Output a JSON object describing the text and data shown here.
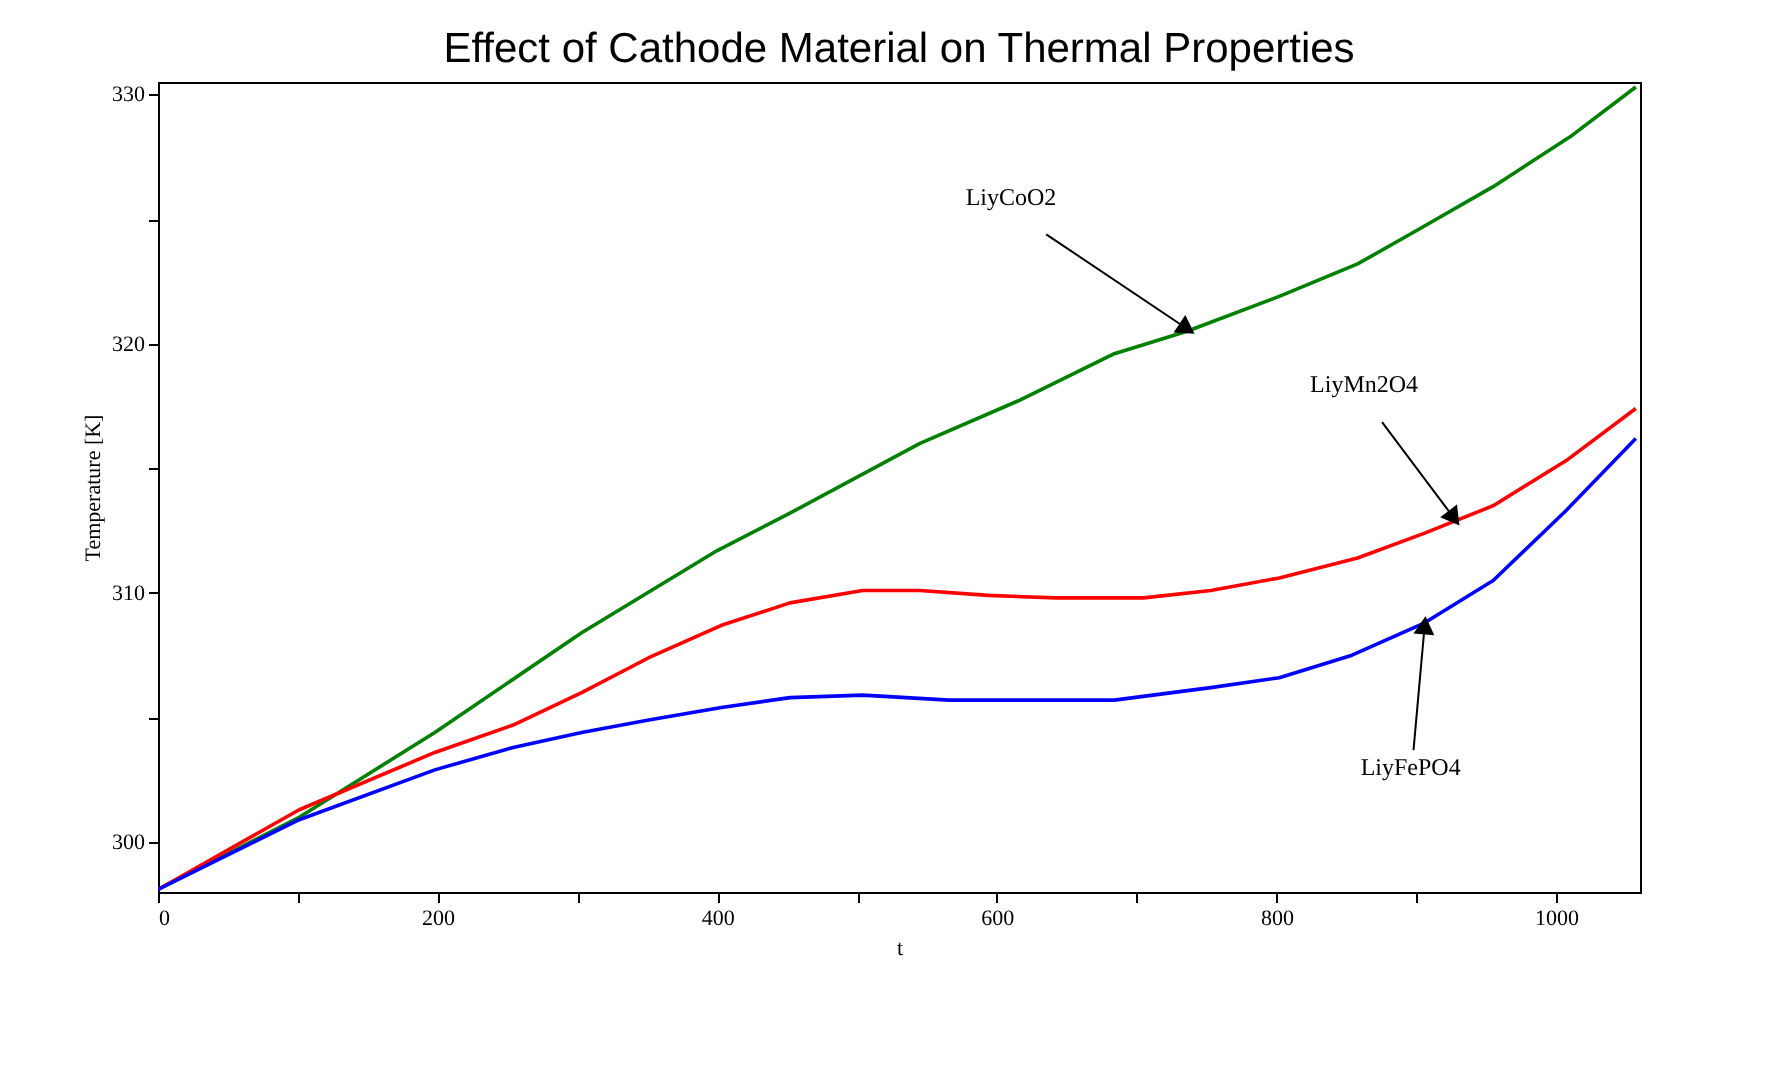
{
  "chart_data": {
    "type": "line",
    "title": "Effect of Cathode Material on Thermal Properties",
    "xlabel": "t",
    "ylabel": "Temperature [K]",
    "xlim": [
      0,
      1060
    ],
    "ylim": [
      298,
      330.5
    ],
    "xticks": [
      0,
      {
        "value": 100,
        "label": null
      },
      200,
      {
        "value": 300,
        "label": null
      },
      400,
      {
        "value": 500,
        "label": null
      },
      600,
      {
        "value": 700,
        "label": null
      },
      800,
      {
        "value": 900,
        "label": null
      },
      1000
    ],
    "yticks": [
      300,
      {
        "value": 305,
        "label": null
      },
      310,
      {
        "value": 315,
        "label": null
      },
      320,
      {
        "value": 325,
        "label": null
      },
      330
    ],
    "grid": false,
    "legend": false,
    "series": [
      {
        "color": "#008000",
        "x": [
          0,
          101,
          198,
          303,
          400,
          452,
          545,
          615,
          684,
          736,
          802,
          858,
          899,
          955,
          1010,
          1057
        ],
        "values": [
          298.1,
          301.0,
          304.4,
          308.4,
          311.7,
          313.2,
          316.0,
          317.7,
          319.6,
          320.5,
          321.9,
          323.2,
          324.5,
          326.3,
          328.3,
          330.3
        ]
      },
      {
        "color": "#ff0000",
        "x": [
          0,
          101,
          198,
          254,
          303,
          351,
          403,
          452,
          504,
          545,
          594,
          642,
          705,
          753,
          802,
          858,
          906,
          955,
          1007,
          1057
        ],
        "values": [
          298.1,
          301.3,
          303.6,
          304.7,
          306.0,
          307.4,
          308.7,
          309.6,
          310.1,
          310.1,
          309.9,
          309.8,
          309.8,
          310.1,
          310.6,
          311.4,
          312.4,
          313.5,
          315.3,
          317.4
        ]
      },
      {
        "color": "#0000ff",
        "x": [
          0,
          101,
          198,
          254,
          303,
          351,
          403,
          452,
          504,
          566,
          684,
          753,
          802,
          854,
          906,
          955,
          1007,
          1057
        ],
        "values": [
          298.1,
          300.9,
          302.9,
          303.8,
          304.4,
          304.9,
          305.4,
          305.8,
          305.9,
          305.7,
          305.7,
          306.2,
          306.6,
          307.5,
          308.8,
          310.5,
          313.3,
          316.2
        ]
      }
    ],
    "annotations": [
      {
        "text": "LiyCoO2",
        "x": 736,
        "y": 320.6
      },
      {
        "text": "LiyMn2O4",
        "x": 927,
        "y": 313.0
      },
      {
        "text": "LiyFePO4",
        "x": 906,
        "y": 308.7
      }
    ]
  }
}
